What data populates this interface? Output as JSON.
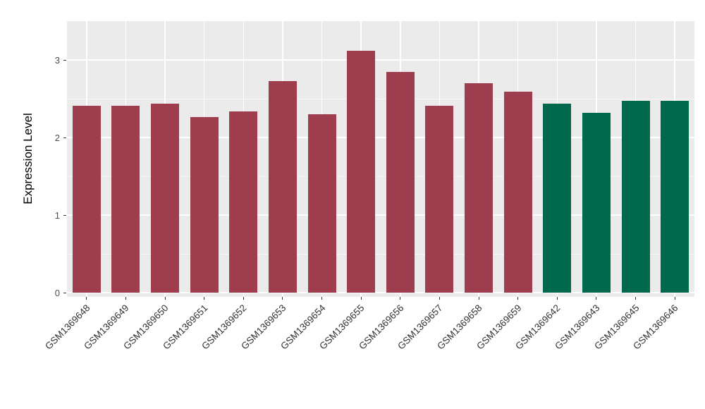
{
  "chart_data": {
    "type": "bar",
    "title": "",
    "xlabel": "",
    "ylabel": "Expression Level",
    "ylim": [
      0,
      3.5
    ],
    "yticks": [
      0,
      1,
      2,
      3
    ],
    "grid": "on",
    "legend": "none",
    "plot_background": "#EBEBEB",
    "categories": [
      "GSM1369648",
      "GSM1369649",
      "GSM1369650",
      "GSM1369651",
      "GSM1369652",
      "GSM1369653",
      "GSM1369654",
      "GSM1369655",
      "GSM1369656",
      "GSM1369657",
      "GSM1369658",
      "GSM1369659",
      "GSM1369642",
      "GSM1369643",
      "GSM1369645",
      "GSM1369646"
    ],
    "values": [
      2.41,
      2.41,
      2.44,
      2.26,
      2.34,
      2.73,
      2.3,
      3.12,
      2.85,
      2.41,
      2.7,
      2.59,
      2.44,
      2.32,
      2.47,
      2.47
    ],
    "bar_colors": [
      "#9E3D4E",
      "#9E3D4E",
      "#9E3D4E",
      "#9E3D4E",
      "#9E3D4E",
      "#9E3D4E",
      "#9E3D4E",
      "#9E3D4E",
      "#9E3D4E",
      "#9E3D4E",
      "#9E3D4E",
      "#9E3D4E",
      "#00684C",
      "#00684C",
      "#00684C",
      "#00684C"
    ]
  }
}
